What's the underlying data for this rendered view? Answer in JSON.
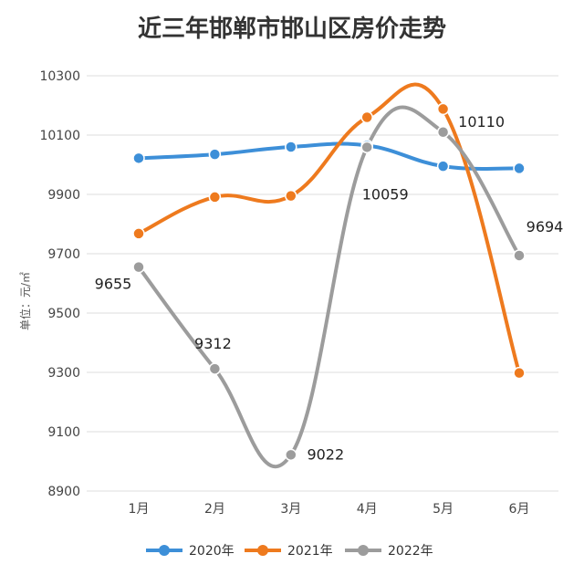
{
  "chart_data": {
    "type": "line",
    "title": "近三年邯郸市邯山区房价走势",
    "xlabel": "",
    "ylabel": "单位：元/㎡",
    "categories": [
      "1月",
      "2月",
      "3月",
      "4月",
      "5月",
      "6月"
    ],
    "yticks": [
      8900,
      9100,
      9300,
      9500,
      9700,
      9900,
      10100,
      10300
    ],
    "ylim": [
      8900,
      10300
    ],
    "grid": true,
    "legend_position": "bottom",
    "series": [
      {
        "name": "2020年",
        "color": "#3d8fd8",
        "values": [
          10022,
          10035,
          10060,
          10065,
          9995,
          9988
        ],
        "labels": []
      },
      {
        "name": "2021年",
        "color": "#ee7a1e",
        "values": [
          9768,
          9891,
          9895,
          10160,
          10188,
          9298
        ],
        "labels": []
      },
      {
        "name": "2022年",
        "color": "#9c9c9c",
        "values": [
          9655,
          9312,
          9022,
          10059,
          10110,
          9694
        ],
        "labels": [
          "9655",
          "9312",
          "9022",
          "10059",
          "10110",
          "9694"
        ]
      }
    ]
  }
}
